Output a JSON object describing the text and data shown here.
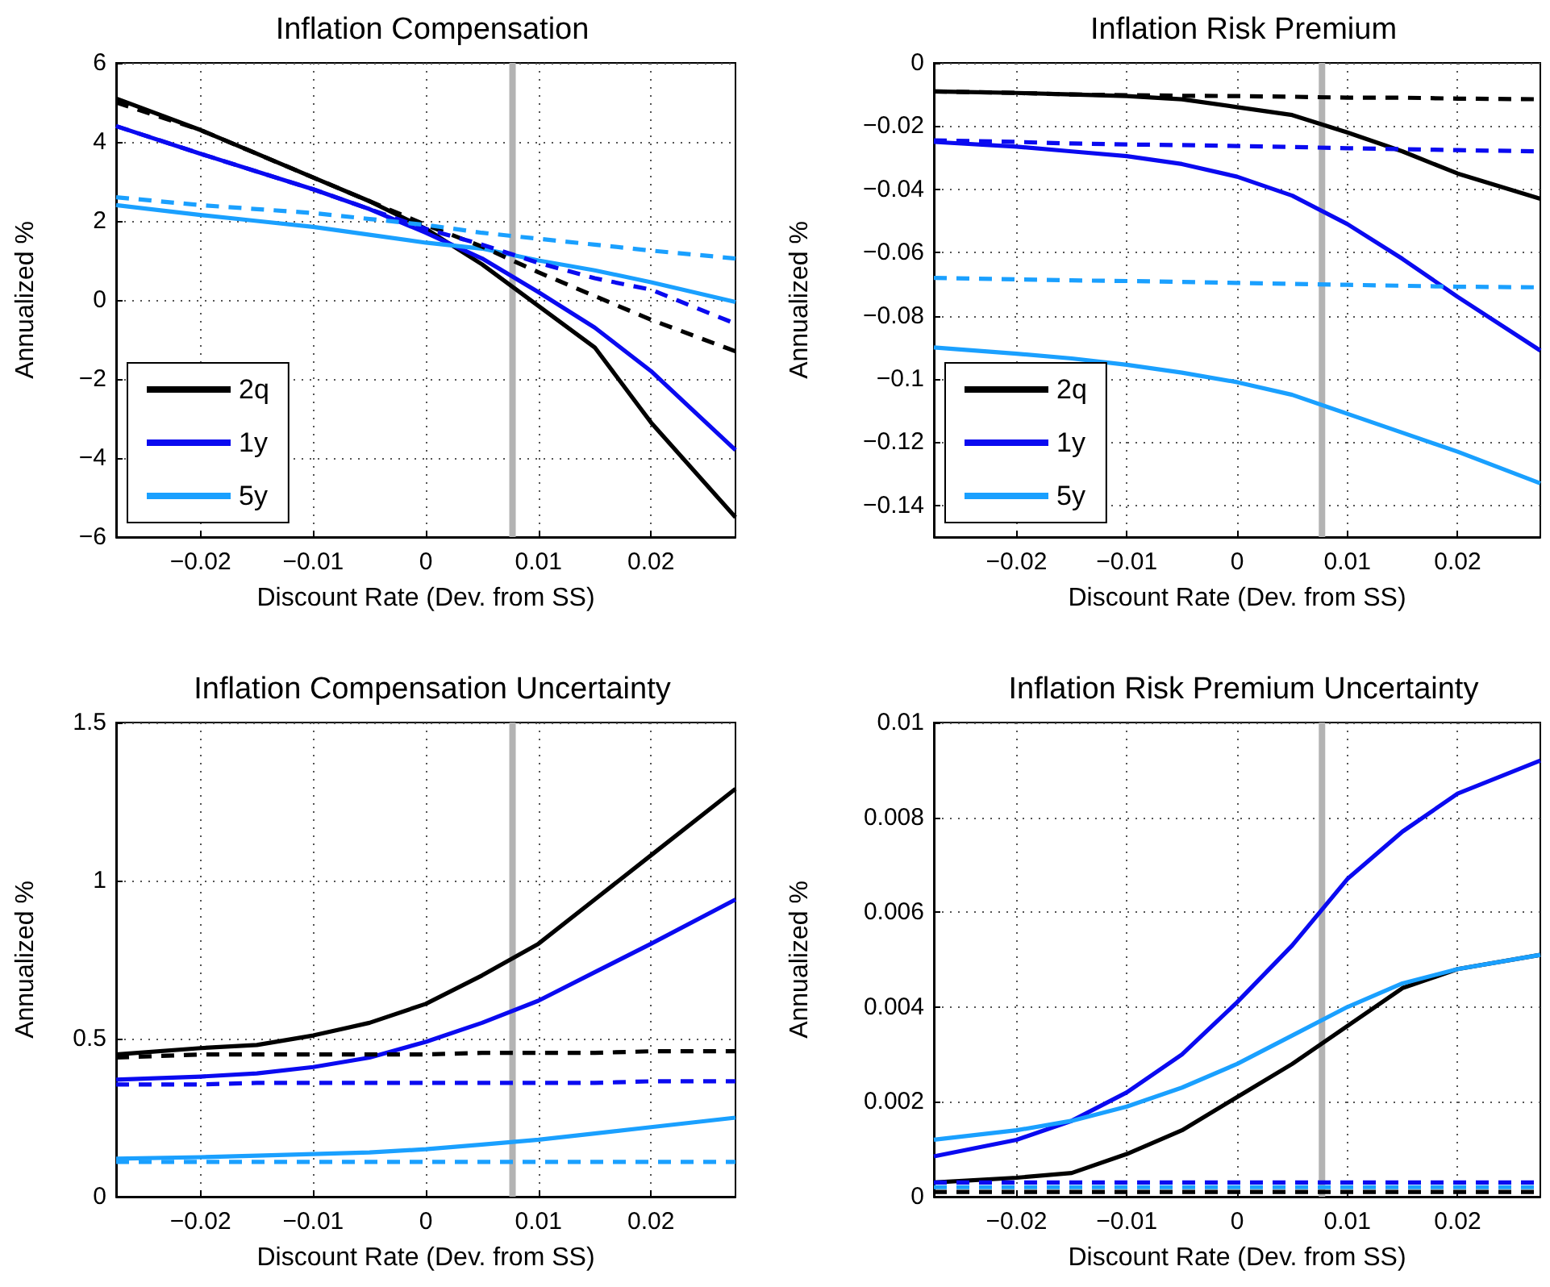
{
  "chart_data": [
    {
      "type": "line",
      "title": "Inflation Compensation",
      "xlabel": "Discount Rate (Dev. from SS)",
      "ylabel": "Annualized %",
      "x": [
        -0.0275,
        -0.02,
        -0.015,
        -0.01,
        -0.005,
        0,
        0.005,
        0.01,
        0.015,
        0.02,
        0.0275
      ],
      "xlim": [
        -0.0275,
        0.0275
      ],
      "xticks": [
        -0.02,
        -0.01,
        0,
        0.01,
        0.02
      ],
      "ylim": [
        -6,
        6
      ],
      "yticks": [
        -6,
        -4,
        -2,
        0,
        2,
        4,
        6
      ],
      "grid": true,
      "legend": "bottom left",
      "marker": "none",
      "ref_lines": [
        {
          "axis": "x",
          "value": 0.0077,
          "color": "#b3b3b3"
        }
      ],
      "series": [
        {
          "name": "2q",
          "color": "#000000",
          "line_style": "solid",
          "values": [
            5.1,
            4.3,
            3.7,
            3.1,
            2.5,
            1.8,
            0.9,
            -0.15,
            -1.2,
            -3.1,
            -5.5
          ]
        },
        {
          "name": "1y",
          "color": "#0a0af0",
          "line_style": "solid",
          "values": [
            4.4,
            3.7,
            3.25,
            2.8,
            2.3,
            1.7,
            1.05,
            0.2,
            -0.7,
            -1.8,
            -3.8
          ]
        },
        {
          "name": "5y",
          "color": "#1aa0ff",
          "line_style": "solid",
          "values": [
            2.4,
            2.15,
            2.0,
            1.85,
            1.65,
            1.45,
            1.3,
            1.0,
            0.75,
            0.45,
            -0.05
          ]
        },
        {
          "color": "#000000",
          "line_style": "dashed",
          "values": [
            5.0,
            4.3,
            3.7,
            3.1,
            2.5,
            1.9,
            1.35,
            0.7,
            0.1,
            -0.5,
            -1.3
          ]
        },
        {
          "color": "#0a0af0",
          "line_style": "dashed",
          "values": [
            4.4,
            3.7,
            3.25,
            2.8,
            2.3,
            1.8,
            1.4,
            0.94,
            0.55,
            0.26,
            -0.6
          ]
        },
        {
          "color": "#1aa0ff",
          "line_style": "dashed",
          "values": [
            2.6,
            2.4,
            2.3,
            2.2,
            2.05,
            1.9,
            1.7,
            1.55,
            1.4,
            1.25,
            1.05
          ]
        }
      ]
    },
    {
      "type": "line",
      "title": "Inflation Risk Premium",
      "xlabel": "Discount Rate (Dev. from SS)",
      "ylabel": "Annualized %",
      "x": [
        -0.0275,
        -0.02,
        -0.015,
        -0.01,
        -0.005,
        0,
        0.005,
        0.01,
        0.015,
        0.02,
        0.0275
      ],
      "xlim": [
        -0.0275,
        0.0275
      ],
      "xticks": [
        -0.02,
        -0.01,
        0,
        0.01,
        0.02
      ],
      "ylim": [
        -0.15,
        0
      ],
      "yticks": [
        -0.14,
        -0.12,
        -0.1,
        -0.08,
        -0.06,
        -0.04,
        -0.02,
        0
      ],
      "grid": true,
      "legend": "bottom left",
      "marker": "none",
      "ref_lines": [
        {
          "axis": "x",
          "value": 0.0077,
          "color": "#b3b3b3"
        }
      ],
      "series": [
        {
          "name": "2q",
          "color": "#000000",
          "line_style": "solid",
          "values": [
            -0.009,
            -0.0095,
            -0.01,
            -0.0105,
            -0.0115,
            -0.014,
            -0.0165,
            -0.022,
            -0.028,
            -0.035,
            -0.043
          ]
        },
        {
          "name": "1y",
          "color": "#0a0af0",
          "line_style": "solid",
          "values": [
            -0.025,
            -0.0265,
            -0.028,
            -0.0295,
            -0.032,
            -0.036,
            -0.042,
            -0.051,
            -0.062,
            -0.074,
            -0.091
          ]
        },
        {
          "name": "5y",
          "color": "#1aa0ff",
          "line_style": "solid",
          "values": [
            -0.09,
            -0.092,
            -0.0935,
            -0.0955,
            -0.098,
            -0.101,
            -0.105,
            -0.111,
            -0.117,
            -0.123,
            -0.133
          ]
        },
        {
          "color": "#000000",
          "line_style": "dashed",
          "values": [
            -0.009,
            -0.0095,
            -0.01,
            -0.0102,
            -0.0104,
            -0.0105,
            -0.0107,
            -0.011,
            -0.011,
            -0.0113,
            -0.0115
          ]
        },
        {
          "color": "#0a0af0",
          "line_style": "dashed",
          "values": [
            -0.0245,
            -0.025,
            -0.0255,
            -0.0258,
            -0.026,
            -0.0263,
            -0.0266,
            -0.027,
            -0.0273,
            -0.0276,
            -0.028
          ]
        },
        {
          "color": "#1aa0ff",
          "line_style": "dashed",
          "values": [
            -0.068,
            -0.0685,
            -0.0688,
            -0.069,
            -0.0693,
            -0.0696,
            -0.0699,
            -0.0702,
            -0.0705,
            -0.0708,
            -0.071
          ]
        }
      ]
    },
    {
      "type": "line",
      "title": "Inflation Compensation Uncertainty",
      "xlabel": "Discount Rate (Dev. from SS)",
      "ylabel": "Annualized %",
      "x": [
        -0.0275,
        -0.02,
        -0.015,
        -0.01,
        -0.005,
        0,
        0.005,
        0.01,
        0.015,
        0.02,
        0.0275
      ],
      "xlim": [
        -0.0275,
        0.0275
      ],
      "xticks": [
        -0.02,
        -0.01,
        0,
        0.01,
        0.02
      ],
      "ylim": [
        0,
        1.5
      ],
      "yticks": [
        0,
        0.5,
        1,
        1.5
      ],
      "grid": true,
      "marker": "none",
      "ref_lines": [
        {
          "axis": "x",
          "value": 0.0077,
          "color": "#b3b3b3"
        }
      ],
      "series": [
        {
          "color": "#000000",
          "line_style": "solid",
          "values": [
            0.45,
            0.47,
            0.48,
            0.51,
            0.55,
            0.61,
            0.7,
            0.8,
            0.94,
            1.08,
            1.29
          ]
        },
        {
          "color": "#0a0af0",
          "line_style": "solid",
          "values": [
            0.37,
            0.38,
            0.39,
            0.41,
            0.44,
            0.49,
            0.55,
            0.62,
            0.71,
            0.8,
            0.94
          ]
        },
        {
          "color": "#1aa0ff",
          "line_style": "solid",
          "values": [
            0.12,
            0.125,
            0.13,
            0.135,
            0.14,
            0.15,
            0.165,
            0.18,
            0.2,
            0.22,
            0.25
          ]
        },
        {
          "color": "#000000",
          "line_style": "dashed",
          "values": [
            0.44,
            0.45,
            0.45,
            0.45,
            0.45,
            0.45,
            0.455,
            0.455,
            0.455,
            0.46,
            0.46
          ]
        },
        {
          "color": "#0a0af0",
          "line_style": "dashed",
          "values": [
            0.355,
            0.355,
            0.36,
            0.36,
            0.36,
            0.36,
            0.36,
            0.36,
            0.36,
            0.365,
            0.365
          ]
        },
        {
          "color": "#1aa0ff",
          "line_style": "dashed",
          "values": [
            0.11,
            0.11,
            0.11,
            0.11,
            0.11,
            0.11,
            0.11,
            0.11,
            0.11,
            0.11,
            0.11
          ]
        }
      ]
    },
    {
      "type": "line",
      "title": "Inflation Risk Premium Uncertainty",
      "xlabel": "Discount Rate (Dev. from SS)",
      "ylabel": "Annualized %",
      "x": [
        -0.0275,
        -0.02,
        -0.015,
        -0.01,
        -0.005,
        0,
        0.005,
        0.01,
        0.015,
        0.02,
        0.0275
      ],
      "xlim": [
        -0.0275,
        0.0275
      ],
      "xticks": [
        -0.02,
        -0.01,
        0,
        0.01,
        0.02
      ],
      "ylim": [
        0,
        0.01
      ],
      "yticks": [
        0,
        0.002,
        0.004,
        0.006,
        0.008,
        0.01
      ],
      "grid": true,
      "marker": "none",
      "ref_lines": [
        {
          "axis": "x",
          "value": 0.0077,
          "color": "#b3b3b3"
        }
      ],
      "series": [
        {
          "color": "#000000",
          "line_style": "solid",
          "values": [
            0.0003,
            0.0004,
            0.0005,
            0.0009,
            0.0014,
            0.0021,
            0.0028,
            0.0036,
            0.0044,
            0.0048,
            0.0051
          ]
        },
        {
          "color": "#0a0af0",
          "line_style": "solid",
          "values": [
            0.00085,
            0.0012,
            0.0016,
            0.0022,
            0.003,
            0.0041,
            0.0053,
            0.0067,
            0.0077,
            0.0085,
            0.0092
          ]
        },
        {
          "color": "#1aa0ff",
          "line_style": "solid",
          "values": [
            0.0012,
            0.0014,
            0.0016,
            0.0019,
            0.0023,
            0.0028,
            0.0034,
            0.004,
            0.0045,
            0.0048,
            0.0051
          ]
        },
        {
          "color": "#000000",
          "line_style": "dashed",
          "values": [
            0.0001,
            0.0001,
            0.0001,
            0.0001,
            0.0001,
            0.0001,
            0.0001,
            0.0001,
            0.0001,
            0.0001,
            0.0001
          ]
        },
        {
          "color": "#0a0af0",
          "line_style": "dashed",
          "values": [
            0.0003,
            0.0003,
            0.0003,
            0.0003,
            0.0003,
            0.0003,
            0.0003,
            0.0003,
            0.0003,
            0.0003,
            0.0003
          ]
        },
        {
          "color": "#1aa0ff",
          "line_style": "dashed",
          "values": [
            0.0002,
            0.0002,
            0.0002,
            0.0002,
            0.0002,
            0.0002,
            0.0002,
            0.0002,
            0.0002,
            0.0002,
            0.0002
          ]
        }
      ]
    }
  ]
}
